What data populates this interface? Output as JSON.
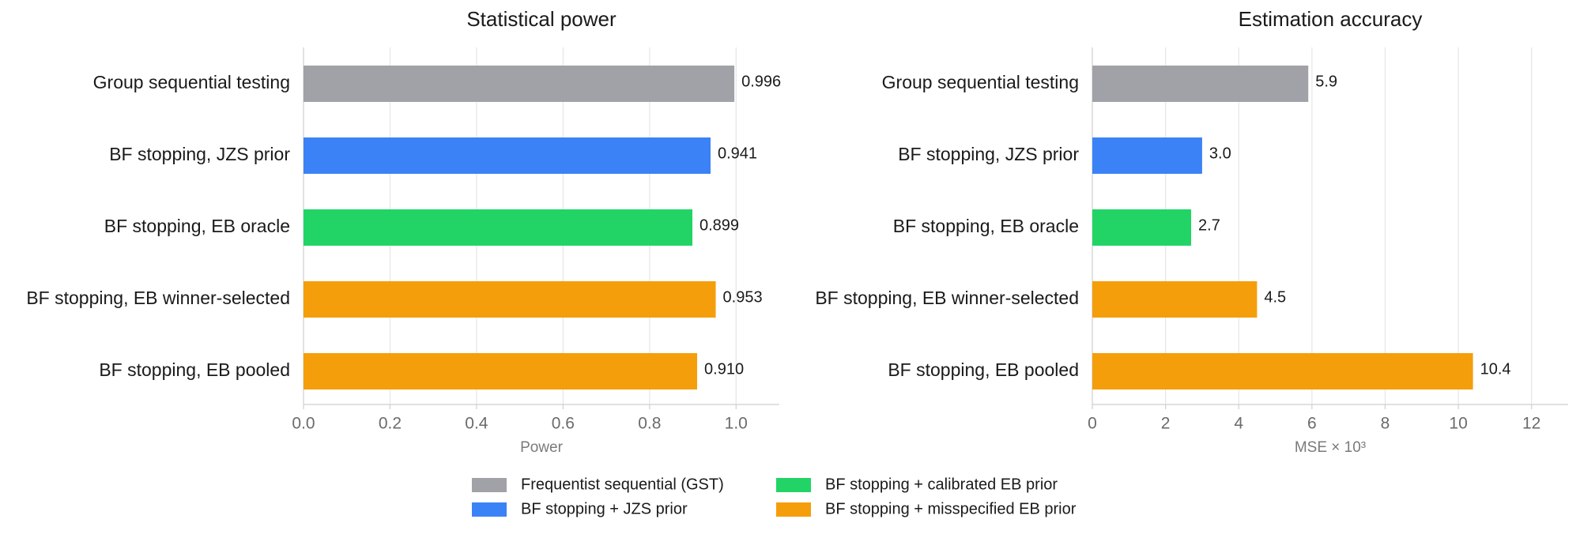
{
  "colors": {
    "gst": "#a1a1a8",
    "jzs": "#3b82f6",
    "eb_calibrated": "#22d466",
    "eb_misspecified": "#f59e0b"
  },
  "legend": [
    {
      "label": "Frequentist sequential (GST)",
      "color": "#a1a1a8"
    },
    {
      "label": "BF stopping + JZS prior",
      "color": "#3b82f6"
    },
    {
      "label": "BF stopping + calibrated EB prior",
      "color": "#22d466"
    },
    {
      "label": "BF stopping + misspecified EB prior",
      "color": "#f59e0b"
    }
  ],
  "chart_data": [
    {
      "type": "bar",
      "orientation": "horizontal",
      "title": "Statistical power",
      "xlabel": "Power",
      "ylabel": "",
      "xlim": [
        0,
        1.1
      ],
      "ticks": [
        0.0,
        0.2,
        0.4,
        0.6,
        0.8,
        1.0
      ],
      "tick_labels": [
        "0.0",
        "0.2",
        "0.4",
        "0.6",
        "0.8",
        "1.0"
      ],
      "grid": true,
      "categories": [
        "Group sequential testing",
        "BF stopping, JZS prior",
        "BF stopping, EB oracle",
        "BF stopping, EB winner-selected",
        "BF stopping, EB pooled"
      ],
      "values": [
        0.996,
        0.941,
        0.899,
        0.953,
        0.91
      ],
      "value_labels": [
        "0.996",
        "0.941",
        "0.899",
        "0.953",
        "0.910"
      ],
      "bar_colors": [
        "#a1a1a8",
        "#3b82f6",
        "#22d466",
        "#f59e0b",
        "#f59e0b"
      ]
    },
    {
      "type": "bar",
      "orientation": "horizontal",
      "title": "Estimation accuracy",
      "xlabel": "MSE × 10³",
      "ylabel": "",
      "xlim": [
        0,
        13
      ],
      "ticks": [
        0,
        2,
        4,
        6,
        8,
        10,
        12
      ],
      "tick_labels": [
        "0",
        "2",
        "4",
        "6",
        "8",
        "10",
        "12"
      ],
      "grid": true,
      "categories": [
        "Group sequential testing",
        "BF stopping, JZS prior",
        "BF stopping, EB oracle",
        "BF stopping, EB winner-selected",
        "BF stopping, EB pooled"
      ],
      "values": [
        5.9,
        3.0,
        2.7,
        4.5,
        10.4
      ],
      "value_labels": [
        "5.9",
        "3.0",
        "2.7",
        "4.5",
        "10.4"
      ],
      "bar_colors": [
        "#a1a1a8",
        "#3b82f6",
        "#22d466",
        "#f59e0b",
        "#f59e0b"
      ]
    }
  ]
}
